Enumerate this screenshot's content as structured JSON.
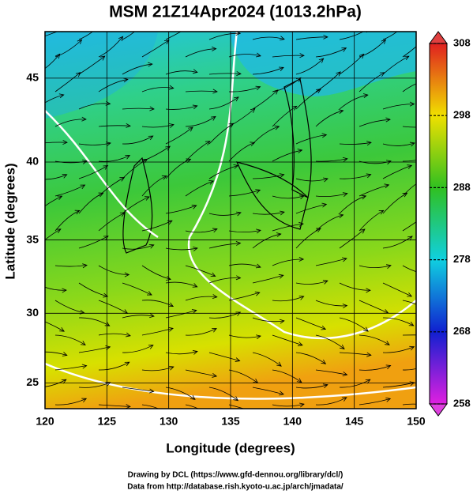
{
  "title": "MSM 21Z14Apr2024 (1013.2hPa)",
  "x_axis": {
    "label": "Longitude (degrees)",
    "lim": [
      120,
      150
    ],
    "ticks": [
      120,
      125,
      130,
      135,
      140,
      145,
      150
    ]
  },
  "y_axis": {
    "label": "Latitude  (degrees)",
    "lim": [
      23.1,
      47.6
    ],
    "ticks": [
      25,
      30,
      35,
      40,
      45
    ],
    "projection": "mercator"
  },
  "colorbar": {
    "lim": [
      258,
      308
    ],
    "ticks": [
      258,
      268,
      278,
      288,
      298,
      308
    ]
  },
  "credits": [
    "Drawing by DCL (https://www.gfd-dennou.org/library/dcl/)",
    "Data from http://database.rish.kyoto-u.ac.jp/arch/jmadata/"
  ]
}
